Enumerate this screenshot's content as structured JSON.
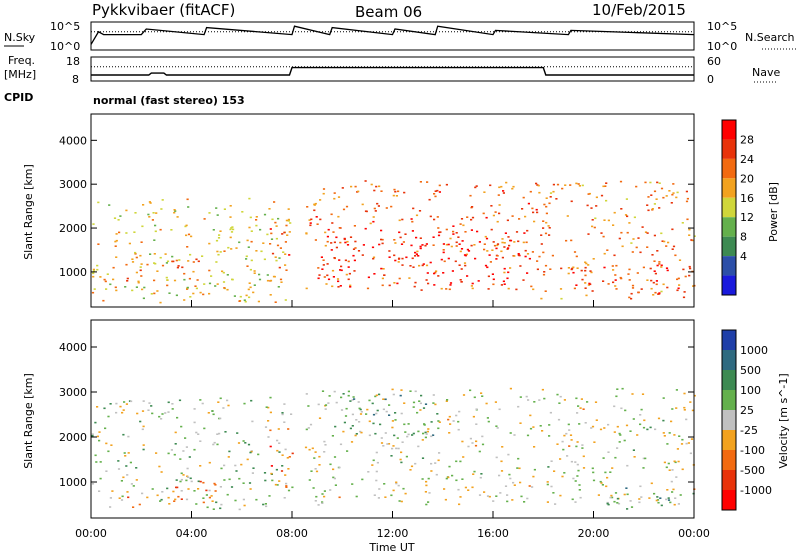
{
  "header": {
    "radar": "Pykkvibaer (fitACF)",
    "beam": "Beam 06",
    "date": "10/Feb/2015"
  },
  "side_labels": {
    "nsky": "N.Sky",
    "freq_top": "Freq.",
    "freq_unit": "[MHz]",
    "cpid": "CPID",
    "nsearch": "N.Search",
    "nave": "Nave"
  },
  "cpid_text": "normal (fast stereo) 153",
  "colors": {
    "power": [
      "#1a1adc",
      "#2c4fa8",
      "#3d8a52",
      "#64b04c",
      "#cfd63a",
      "#f2a21f",
      "#f26a10",
      "#e8330a",
      "#ff0000"
    ],
    "velocity": [
      "#1f3fa8",
      "#2f6a80",
      "#3d8a52",
      "#64b04c",
      "#c0c0c0",
      "#f2a21f",
      "#f26a10",
      "#e8330a",
      "#ff0000"
    ]
  },
  "chart_data": [
    {
      "type": "line",
      "name": "noise-panel",
      "left_ticks": [
        "10^5",
        "10^0"
      ],
      "right_ticks": [
        "10^5",
        "10^0"
      ],
      "x_range": [
        0,
        24
      ],
      "series": [
        {
          "name": "N.Sky",
          "x": [
            0,
            0.3,
            0.5,
            2,
            2.2,
            4.5,
            4.6,
            8,
            8.1,
            9.5,
            9.6,
            12,
            12.1,
            13.7,
            13.8,
            16,
            16.1,
            19,
            19.1,
            24
          ],
          "y": [
            0.2,
            0.65,
            0.55,
            0.55,
            0.75,
            0.55,
            0.8,
            0.55,
            0.85,
            0.55,
            0.8,
            0.55,
            0.75,
            0.55,
            0.85,
            0.55,
            0.7,
            0.55,
            0.7,
            0.55
          ]
        }
      ]
    },
    {
      "type": "line",
      "name": "frequency-panel",
      "left_ticks": [
        "18",
        "8"
      ],
      "right_ticks": [
        "60",
        "0"
      ],
      "x_range": [
        0,
        24
      ],
      "series": [
        {
          "name": "Freq.",
          "x": [
            0,
            2.3,
            2.4,
            2.9,
            3.0,
            7.9,
            8.0,
            18.0,
            18.1,
            24
          ],
          "y": [
            10.5,
            10.5,
            11.3,
            11.3,
            10.5,
            10.5,
            13.6,
            13.6,
            10.5,
            10.5
          ]
        },
        {
          "name": "Nave",
          "x": [
            0,
            24
          ],
          "y": [
            13.9,
            13.9
          ]
        }
      ]
    },
    {
      "type": "heatmap",
      "name": "power-panel",
      "xlabel": "",
      "ylabel": "Slant Range [km]",
      "ylim": [
        200,
        4600
      ],
      "y_ticks": [
        "1000",
        "2000",
        "3000",
        "4000"
      ],
      "colorbar_label": "Power [dB]",
      "colorbar_ticks": [
        "4",
        "8",
        "12",
        "16",
        "20",
        "24",
        "28"
      ],
      "regions": [
        {
          "x0": 0,
          "x1": 7.9,
          "y0": 300,
          "y1": 2700,
          "level": 0.55
        },
        {
          "x0": 0.5,
          "x1": 4.5,
          "y0": 800,
          "y1": 1400,
          "level": 0.7
        },
        {
          "x0": 3.5,
          "x1": 6.5,
          "y0": 400,
          "y1": 900,
          "level": 0.6
        },
        {
          "x0": 7.0,
          "x1": 8.0,
          "y0": 800,
          "y1": 2300,
          "level": 0.75
        },
        {
          "x0": 8.5,
          "x1": 18.0,
          "y0": 600,
          "y1": 3100,
          "level": 0.75
        },
        {
          "x0": 9.0,
          "x1": 17.5,
          "y0": 700,
          "y1": 2000,
          "level": 0.95
        },
        {
          "x0": 17.5,
          "x1": 24.0,
          "y0": 400,
          "y1": 3100,
          "level": 0.7
        },
        {
          "x0": 19.0,
          "x1": 24.0,
          "y0": 500,
          "y1": 1200,
          "level": 0.85
        }
      ]
    },
    {
      "type": "heatmap",
      "name": "velocity-panel",
      "xlabel": "Time UT",
      "ylabel": "Slant Range [km]",
      "ylim": [
        200,
        4600
      ],
      "x_ticks": [
        "00:00",
        "04:00",
        "08:00",
        "12:00",
        "16:00",
        "20:00",
        "00:00"
      ],
      "y_ticks": [
        "1000",
        "2000",
        "3000",
        "4000"
      ],
      "colorbar_label": "Velocity [m s^-1]",
      "colorbar_ticks": [
        "1000",
        "500",
        "100",
        "25",
        "-25",
        "-100",
        "-500",
        "-1000"
      ],
      "regions": [
        {
          "x0": 0,
          "x1": 8.0,
          "y0": 400,
          "y1": 2900,
          "level": 0.45
        },
        {
          "x0": 0.5,
          "x1": 2.5,
          "y0": 450,
          "y1": 700,
          "level": 0.62
        },
        {
          "x0": 3.0,
          "x1": 5.0,
          "y0": 500,
          "y1": 1200,
          "level": 0.7
        },
        {
          "x0": 7.0,
          "x1": 8.0,
          "y0": 900,
          "y1": 2200,
          "level": 0.75
        },
        {
          "x0": 8.5,
          "x1": 24.0,
          "y0": 500,
          "y1": 3100,
          "level": 0.5
        },
        {
          "x0": 9.5,
          "x1": 14.0,
          "y0": 2000,
          "y1": 3000,
          "level": 0.3
        },
        {
          "x0": 20.5,
          "x1": 24.0,
          "y0": 400,
          "y1": 900,
          "level": 0.3
        }
      ]
    }
  ]
}
